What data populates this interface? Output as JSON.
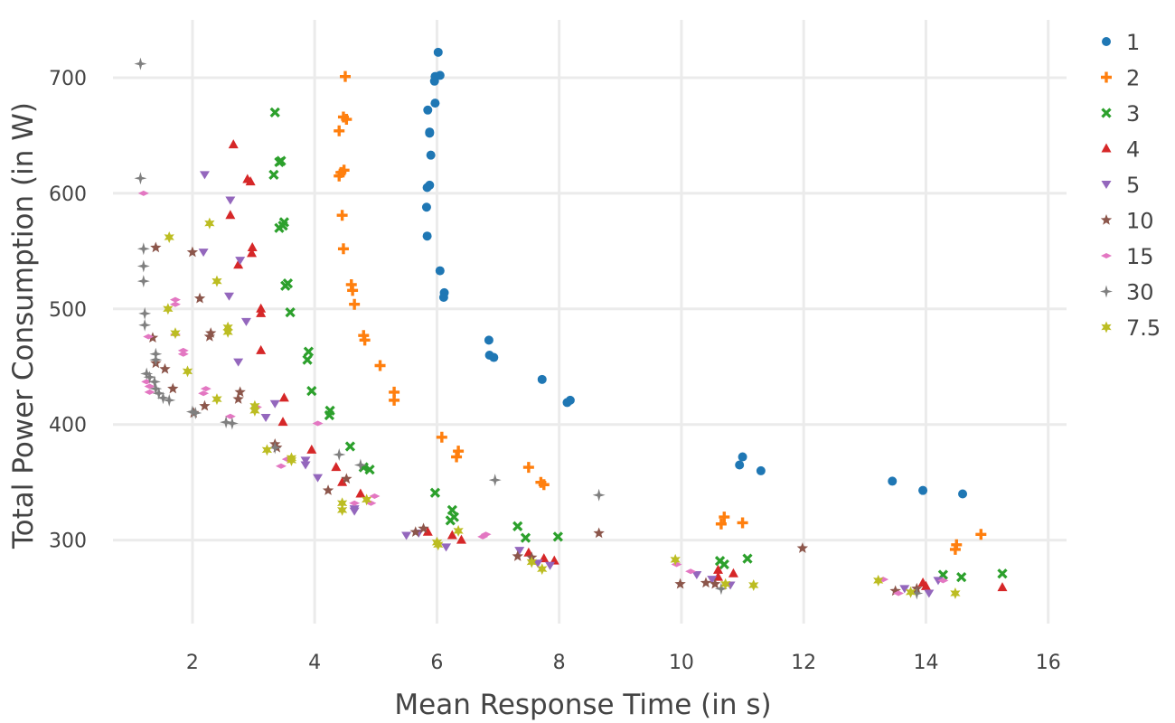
{
  "chart_data": {
    "type": "scatter",
    "title": "",
    "xlabel": "Mean Response Time (in s)",
    "ylabel": "Total Power Consumption (in W)",
    "xlim": [
      0.7,
      16.3
    ],
    "ylim": [
      220,
      750
    ],
    "x_ticks": [
      2,
      4,
      6,
      8,
      10,
      12,
      14,
      16
    ],
    "y_ticks": [
      300,
      400,
      500,
      600,
      700
    ],
    "grid": true,
    "legend_position": "right",
    "series": [
      {
        "name": "1",
        "color": "#1f77b4",
        "marker": "circle",
        "points": [
          [
            6.02,
            722
          ],
          [
            6.05,
            702
          ],
          [
            5.97,
            701
          ],
          [
            5.96,
            697
          ],
          [
            5.97,
            678
          ],
          [
            5.85,
            672
          ],
          [
            5.88,
            653
          ],
          [
            5.88,
            652
          ],
          [
            5.9,
            633
          ],
          [
            5.88,
            607
          ],
          [
            5.84,
            605
          ],
          [
            5.83,
            588
          ],
          [
            5.84,
            563
          ],
          [
            6.05,
            533
          ],
          [
            6.12,
            514
          ],
          [
            6.11,
            510
          ],
          [
            6.85,
            473
          ],
          [
            6.86,
            460
          ],
          [
            6.93,
            458
          ],
          [
            7.72,
            439
          ],
          [
            8.18,
            421
          ],
          [
            8.13,
            419
          ],
          [
            11.0,
            372
          ],
          [
            10.95,
            365
          ],
          [
            11.3,
            360
          ],
          [
            13.45,
            351
          ],
          [
            13.95,
            343
          ],
          [
            14.6,
            340
          ]
        ]
      },
      {
        "name": "2",
        "color": "#ff7f0e",
        "marker": "plus",
        "points": [
          [
            4.5,
            701
          ],
          [
            4.47,
            666
          ],
          [
            4.52,
            664
          ],
          [
            4.4,
            654
          ],
          [
            4.48,
            620
          ],
          [
            4.43,
            618
          ],
          [
            4.4,
            615
          ],
          [
            4.45,
            581
          ],
          [
            4.47,
            552
          ],
          [
            4.6,
            521
          ],
          [
            4.62,
            516
          ],
          [
            4.65,
            504
          ],
          [
            4.8,
            477
          ],
          [
            4.82,
            473
          ],
          [
            5.07,
            451
          ],
          [
            5.3,
            428
          ],
          [
            5.3,
            421
          ],
          [
            6.08,
            389
          ],
          [
            6.35,
            377
          ],
          [
            6.32,
            372
          ],
          [
            7.5,
            363
          ],
          [
            7.7,
            350
          ],
          [
            7.75,
            348
          ],
          [
            10.7,
            320
          ],
          [
            10.65,
            314
          ],
          [
            11.0,
            315
          ],
          [
            14.5,
            296
          ],
          [
            14.48,
            292
          ],
          [
            14.9,
            305
          ]
        ]
      },
      {
        "name": "3",
        "color": "#2ca02c",
        "marker": "x",
        "points": [
          [
            3.35,
            670
          ],
          [
            3.45,
            628
          ],
          [
            3.42,
            627
          ],
          [
            3.33,
            616
          ],
          [
            3.5,
            575
          ],
          [
            3.48,
            572
          ],
          [
            3.42,
            570
          ],
          [
            3.56,
            522
          ],
          [
            3.52,
            520
          ],
          [
            3.6,
            497
          ],
          [
            3.9,
            463
          ],
          [
            3.88,
            456
          ],
          [
            3.95,
            429
          ],
          [
            4.25,
            412
          ],
          [
            4.24,
            408
          ],
          [
            4.58,
            381
          ],
          [
            4.8,
            363
          ],
          [
            4.9,
            361
          ],
          [
            5.97,
            341
          ],
          [
            6.25,
            326
          ],
          [
            6.28,
            320
          ],
          [
            6.22,
            317
          ],
          [
            7.32,
            312
          ],
          [
            7.45,
            302
          ],
          [
            7.98,
            303
          ],
          [
            10.63,
            282
          ],
          [
            10.7,
            279
          ],
          [
            11.08,
            284
          ],
          [
            14.28,
            270
          ],
          [
            14.58,
            268
          ],
          [
            15.25,
            271
          ]
        ]
      },
      {
        "name": "4",
        "color": "#d62728",
        "marker": "triangle-up",
        "points": [
          [
            2.67,
            642
          ],
          [
            2.9,
            612
          ],
          [
            2.95,
            610
          ],
          [
            2.62,
            581
          ],
          [
            2.75,
            538
          ],
          [
            2.98,
            553
          ],
          [
            2.97,
            548
          ],
          [
            3.12,
            500
          ],
          [
            3.12,
            496
          ],
          [
            3.12,
            464
          ],
          [
            3.5,
            423
          ],
          [
            3.48,
            402
          ],
          [
            3.95,
            378
          ],
          [
            4.35,
            363
          ],
          [
            4.45,
            350
          ],
          [
            4.75,
            340
          ],
          [
            5.85,
            307
          ],
          [
            6.25,
            304
          ],
          [
            6.4,
            300
          ],
          [
            7.5,
            289
          ],
          [
            7.75,
            284
          ],
          [
            7.92,
            282
          ],
          [
            10.6,
            274
          ],
          [
            10.6,
            268
          ],
          [
            10.85,
            271
          ],
          [
            13.95,
            263
          ],
          [
            14.0,
            260
          ],
          [
            15.25,
            259
          ]
        ]
      },
      {
        "name": "5",
        "color": "#9467bd",
        "marker": "triangle-down",
        "points": [
          [
            2.2,
            616
          ],
          [
            2.62,
            594
          ],
          [
            2.78,
            542
          ],
          [
            2.18,
            549
          ],
          [
            2.6,
            511
          ],
          [
            2.88,
            489
          ],
          [
            2.75,
            454
          ],
          [
            3.35,
            418
          ],
          [
            3.2,
            406
          ],
          [
            3.85,
            369
          ],
          [
            3.85,
            365
          ],
          [
            4.05,
            354
          ],
          [
            4.65,
            325
          ],
          [
            4.65,
            327
          ],
          [
            5.5,
            304
          ],
          [
            5.7,
            306
          ],
          [
            6.15,
            294
          ],
          [
            7.35,
            291
          ],
          [
            7.65,
            280
          ],
          [
            7.85,
            278
          ],
          [
            10.25,
            270
          ],
          [
            10.5,
            266
          ],
          [
            10.8,
            261
          ],
          [
            13.65,
            258
          ],
          [
            14.05,
            254
          ],
          [
            14.2,
            265
          ]
        ]
      },
      {
        "name": "10",
        "color": "#8c564b",
        "marker": "star",
        "points": [
          [
            1.4,
            553
          ],
          [
            2.0,
            549
          ],
          [
            2.12,
            509
          ],
          [
            2.3,
            479
          ],
          [
            2.28,
            476
          ],
          [
            1.35,
            475
          ],
          [
            1.4,
            453
          ],
          [
            1.55,
            448
          ],
          [
            1.68,
            431
          ],
          [
            2.78,
            428
          ],
          [
            2.75,
            422
          ],
          [
            2.2,
            416
          ],
          [
            2.02,
            410
          ],
          [
            3.35,
            383
          ],
          [
            3.38,
            380
          ],
          [
            4.22,
            343
          ],
          [
            4.52,
            353
          ],
          [
            5.65,
            307
          ],
          [
            5.78,
            310
          ],
          [
            7.32,
            286
          ],
          [
            7.55,
            285
          ],
          [
            9.98,
            262
          ],
          [
            10.4,
            263
          ],
          [
            10.55,
            262
          ],
          [
            11.98,
            293
          ],
          [
            13.5,
            256
          ],
          [
            13.85,
            258
          ],
          [
            8.65,
            306
          ]
        ]
      },
      {
        "name": "15",
        "color": "#e377c2",
        "marker": "diamond",
        "points": [
          [
            1.2,
            600
          ],
          [
            1.72,
            508
          ],
          [
            1.72,
            504
          ],
          [
            1.72,
            478
          ],
          [
            1.28,
            476
          ],
          [
            1.85,
            464
          ],
          [
            1.85,
            461
          ],
          [
            1.25,
            437
          ],
          [
            1.3,
            433
          ],
          [
            1.3,
            428
          ],
          [
            2.22,
            431
          ],
          [
            2.18,
            427
          ],
          [
            2.62,
            407
          ],
          [
            3.05,
            415
          ],
          [
            4.05,
            401
          ],
          [
            3.45,
            364
          ],
          [
            3.55,
            370
          ],
          [
            4.65,
            332
          ],
          [
            4.92,
            332
          ],
          [
            4.98,
            338
          ],
          [
            6.75,
            303
          ],
          [
            6.8,
            305
          ],
          [
            9.92,
            279
          ],
          [
            10.15,
            273
          ],
          [
            13.3,
            266
          ],
          [
            13.55,
            254
          ],
          [
            14.28,
            265
          ]
        ]
      },
      {
        "name": "30",
        "color": "#7f7f7f",
        "marker": "star4",
        "points": [
          [
            1.15,
            712
          ],
          [
            1.15,
            613
          ],
          [
            1.2,
            552
          ],
          [
            1.2,
            537
          ],
          [
            1.2,
            524
          ],
          [
            1.22,
            496
          ],
          [
            1.22,
            486
          ],
          [
            1.4,
            461
          ],
          [
            1.4,
            456
          ],
          [
            1.25,
            444
          ],
          [
            1.3,
            441
          ],
          [
            1.38,
            437
          ],
          [
            1.4,
            431
          ],
          [
            1.45,
            427
          ],
          [
            1.52,
            423
          ],
          [
            1.62,
            421
          ],
          [
            2.0,
            411
          ],
          [
            2.05,
            410
          ],
          [
            2.55,
            402
          ],
          [
            2.65,
            401
          ],
          [
            3.35,
            380
          ],
          [
            4.4,
            374
          ],
          [
            4.75,
            365
          ],
          [
            6.95,
            352
          ],
          [
            8.65,
            339
          ],
          [
            10.65,
            258
          ],
          [
            13.85,
            254
          ]
        ]
      },
      {
        "name": "7.5",
        "color": "#bcbd22",
        "marker": "star6",
        "points": [
          [
            1.62,
            562
          ],
          [
            2.28,
            574
          ],
          [
            1.6,
            500
          ],
          [
            1.72,
            479
          ],
          [
            2.4,
            524
          ],
          [
            2.58,
            484
          ],
          [
            2.58,
            480
          ],
          [
            1.92,
            446
          ],
          [
            2.4,
            422
          ],
          [
            3.02,
            416
          ],
          [
            3.02,
            412
          ],
          [
            3.22,
            378
          ],
          [
            3.62,
            369
          ],
          [
            3.62,
            371
          ],
          [
            4.45,
            332
          ],
          [
            4.45,
            326
          ],
          [
            4.85,
            335
          ],
          [
            6.0,
            298
          ],
          [
            6.02,
            296
          ],
          [
            6.35,
            308
          ],
          [
            7.55,
            281
          ],
          [
            7.72,
            275
          ],
          [
            9.9,
            283
          ],
          [
            10.72,
            262
          ],
          [
            11.18,
            261
          ],
          [
            13.22,
            265
          ],
          [
            13.75,
            255
          ],
          [
            14.48,
            254
          ]
        ]
      }
    ]
  }
}
